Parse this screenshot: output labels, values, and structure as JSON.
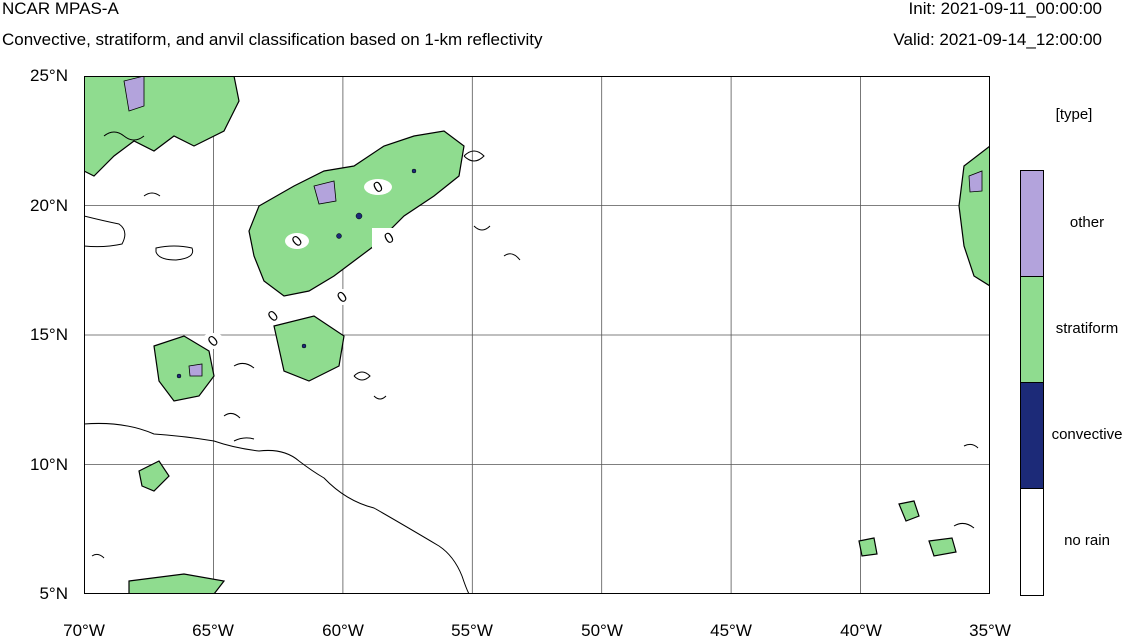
{
  "header": {
    "model": "NCAR MPAS-A",
    "subtitle": "Convective, stratiform, and anvil classification based on 1-km reflectivity",
    "init": "Init: 2021-09-11_00:00:00",
    "valid": "Valid: 2021-09-14_12:00:00"
  },
  "map": {
    "lat_ticks": [
      "25°N",
      "20°N",
      "15°N",
      "10°N",
      "5°N"
    ],
    "lon_ticks": [
      "70°W",
      "65°W",
      "60°W",
      "55°W",
      "50°W",
      "45°W",
      "40°W",
      "35°W"
    ],
    "lat_range": [
      5,
      25
    ],
    "lon_range": [
      -70,
      -35
    ],
    "grid": true,
    "contour_label": "0"
  },
  "legend": {
    "title": "[type]",
    "entries": [
      {
        "label": "other",
        "color": "#b3a3dc"
      },
      {
        "label": "stratiform",
        "color": "#8fdc8f"
      },
      {
        "label": "convective",
        "color": "#1c2a78"
      },
      {
        "label": "no rain",
        "color": "#ffffff"
      }
    ]
  },
  "colors": {
    "coastline": "#000000",
    "gridline": "#555555"
  }
}
